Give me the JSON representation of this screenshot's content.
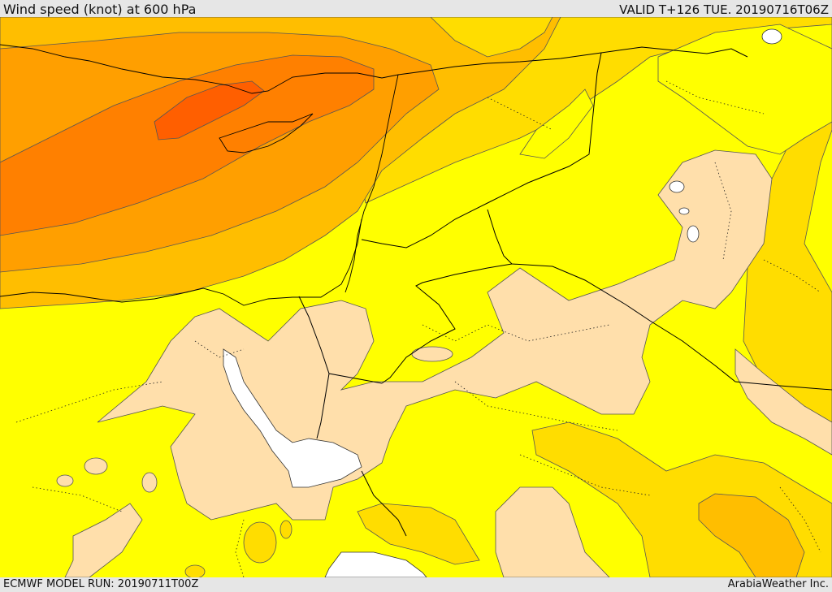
{
  "header": {
    "title": "Wind speed (knot) at 600 hPa",
    "valid": "VALID T+126 TUE. 20190716T06Z"
  },
  "footer": {
    "model_run": "ECMWF MODEL RUN: 20190711T00Z",
    "credit": "ArabiaWeather Inc."
  },
  "colors": {
    "band_light": "#ffdfab",
    "band_yellow": "#ffff00",
    "band_gold": "#ffdd00",
    "band_amber": "#ffbe00",
    "band_orange": "#ff9f00",
    "band_dark_orange": "#ff8000",
    "band_red_orange": "#ff5f00",
    "water": "#ffffff",
    "border": "#000000"
  }
}
